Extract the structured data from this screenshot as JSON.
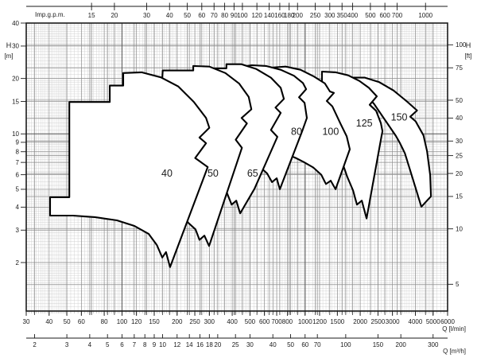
{
  "chart_data": {
    "type": "area",
    "subtype": "pump-family-coverage-envelopes-log-log",
    "title": "",
    "plot": {
      "x_range_lmin": [
        30,
        6000
      ],
      "y_range_m": [
        1.09,
        40
      ],
      "grid": "log-log fine grid",
      "legend_position": "labels inside envelopes"
    },
    "axis_top": {
      "label": "Imp.g.p.m.",
      "unit_to_lmin": 4.54609,
      "ticks": [
        15,
        20,
        30,
        40,
        50,
        60,
        70,
        80,
        90,
        100,
        120,
        140,
        160,
        180,
        200,
        250,
        300,
        350,
        400,
        500,
        600,
        700,
        1000
      ]
    },
    "axis_bottom_lmin": {
      "label": "Q [l/min]",
      "ticks": [
        30,
        40,
        50,
        60,
        80,
        100,
        120,
        150,
        200,
        250,
        300,
        400,
        500,
        600,
        700,
        800,
        1000,
        1200,
        1500,
        2000,
        2500,
        3000,
        4000,
        5000,
        6000
      ]
    },
    "axis_bottom_m3h": {
      "label": "Q [m³/h]",
      "unit_to_lmin": 16.6667,
      "ticks": [
        2,
        3,
        4,
        5,
        6,
        7,
        8,
        9,
        10,
        12,
        14,
        16,
        18,
        20,
        25,
        30,
        40,
        50,
        60,
        70,
        100,
        150,
        200,
        300
      ]
    },
    "axis_left": {
      "name": "H",
      "unit": "[m]",
      "ticks": [
        40,
        30,
        20,
        15,
        10,
        9,
        8,
        7,
        6,
        5,
        4,
        3,
        2
      ]
    },
    "axis_right": {
      "name": "H",
      "unit": "[ft]",
      "unit_to_m": 0.3048,
      "ticks": [
        100,
        75,
        50,
        40,
        30,
        25,
        20,
        15,
        10,
        5
      ]
    },
    "colors": {
      "background": "#ffffff",
      "grid_minor": "#cfcfcf",
      "grid_medium": "#8c8c8c",
      "grid_strong": "#555555",
      "axis": "#1a1a1a",
      "envelope_fill": "#ffffff",
      "envelope_stroke": "#000000",
      "text": "#1a1a1a"
    },
    "series": [
      {
        "name": "150",
        "label_Q": 3264,
        "label_H": 12.3,
        "outline": [
          [
            1781,
            20.2
          ],
          [
            2122,
            20.2
          ],
          [
            2541,
            19.1
          ],
          [
            3043,
            17.2
          ],
          [
            3570,
            15.1
          ],
          [
            4087,
            13.4
          ],
          [
            3751,
            12.4
          ],
          [
            4014,
            11.7
          ],
          [
            4434,
            9.81
          ],
          [
            4634,
            8.03
          ],
          [
            4819,
            5.97
          ],
          [
            4868,
            4.58
          ],
          [
            4316,
            4.02
          ],
          [
            4025,
            5.03
          ],
          [
            3759,
            6.29
          ],
          [
            3507,
            7.84
          ],
          [
            3297,
            8.91
          ],
          [
            3132,
            9.74
          ],
          [
            2376,
            14.6
          ],
          [
            1869,
            18.8
          ]
        ]
      },
      {
        "name": "125",
        "label_Q": 2105,
        "label_H": 11.4,
        "outline": [
          [
            1237,
            21.8
          ],
          [
            1467,
            21.6
          ],
          [
            1720,
            20.8
          ],
          [
            1979,
            19.4
          ],
          [
            2231,
            17.8
          ],
          [
            2465,
            16.0
          ],
          [
            2253,
            14.4
          ],
          [
            2442,
            13.35
          ],
          [
            2593,
            11.43
          ],
          [
            2645,
            10.34
          ],
          [
            2619,
            9.83
          ],
          [
            2166,
            3.47
          ],
          [
            2040,
            4.34
          ],
          [
            1920,
            4.13
          ],
          [
            1827,
            4.93
          ],
          [
            1697,
            5.86
          ],
          [
            1603,
            6.9
          ],
          [
            1524,
            7.66
          ],
          [
            1481,
            8.02
          ],
          [
            1329,
            11.9
          ],
          [
            1237,
            17.9
          ]
        ]
      },
      {
        "name": "100",
        "label_Q": 1379,
        "label_H": 10.3,
        "outline": [
          [
            651,
            22.9
          ],
          [
            782,
            23.2
          ],
          [
            944,
            22.3
          ],
          [
            1119,
            20.5
          ],
          [
            1283,
            18.8
          ],
          [
            1367,
            17.0
          ],
          [
            1437,
            16.7
          ],
          [
            1313,
            15.1
          ],
          [
            1409,
            14.1
          ],
          [
            1557,
            11.4
          ],
          [
            1687,
            9.7
          ],
          [
            1755,
            8.25
          ],
          [
            1467,
            5.0
          ],
          [
            1380,
            5.57
          ],
          [
            1300,
            5.34
          ],
          [
            1225,
            6.0
          ],
          [
            1108,
            6.57
          ],
          [
            983,
            7.03
          ],
          [
            890,
            7.4
          ],
          [
            821,
            7.65
          ],
          [
            714,
            10.9
          ],
          [
            659,
            17.9
          ]
        ]
      },
      {
        "name": "80",
        "label_Q": 898,
        "label_H": 10.3,
        "outline": [
          [
            416,
            22.9
          ],
          [
            511,
            23.6
          ],
          [
            611,
            23.4
          ],
          [
            736,
            22.3
          ],
          [
            869,
            20.7
          ],
          [
            973,
            18.9
          ],
          [
            1013,
            17.5
          ],
          [
            926,
            15.8
          ],
          [
            993,
            14.75
          ],
          [
            1023,
            12.2
          ],
          [
            964,
            10.34
          ],
          [
            728,
            5.0
          ],
          [
            700,
            5.74
          ],
          [
            659,
            5.47
          ],
          [
            621,
            6.09
          ],
          [
            566,
            6.63
          ],
          [
            506,
            7.04
          ],
          [
            455,
            7.33
          ],
          [
            432,
            9.0
          ],
          [
            420,
            14.6
          ]
        ]
      },
      {
        "name": "65",
        "label_Q": 517,
        "label_H": 6.1,
        "outline": [
          [
            262,
            22.7
          ],
          [
            372,
            22.7
          ],
          [
            372,
            23.9
          ],
          [
            449,
            23.9
          ],
          [
            542,
            22.5
          ],
          [
            651,
            20.2
          ],
          [
            736,
            17.8
          ],
          [
            766,
            15.5
          ],
          [
            689,
            13.9
          ],
          [
            736,
            13.0
          ],
          [
            651,
            10.5
          ],
          [
            706,
            9.64
          ],
          [
            529,
            5.03
          ],
          [
            442,
            3.7
          ],
          [
            421,
            4.34
          ],
          [
            397,
            4.13
          ],
          [
            374,
            4.79
          ],
          [
            341,
            5.34
          ],
          [
            311,
            5.84
          ],
          [
            287,
            6.26
          ],
          [
            276,
            9.84
          ],
          [
            270,
            16.2
          ]
        ]
      },
      {
        "name": "50",
        "label_Q": 314,
        "label_H": 6.1,
        "outline": [
          [
            167,
            22.1
          ],
          [
            245,
            22.1
          ],
          [
            245,
            23.4
          ],
          [
            300,
            23.2
          ],
          [
            367,
            21.4
          ],
          [
            436,
            18.8
          ],
          [
            492,
            15.9
          ],
          [
            509,
            13.6
          ],
          [
            450,
            12.2
          ],
          [
            481,
            11.4
          ],
          [
            418,
            9.3
          ],
          [
            452,
            8.4
          ],
          [
            299,
            2.46
          ],
          [
            282,
            2.8
          ],
          [
            265,
            2.66
          ],
          [
            252,
            3.03
          ],
          [
            230,
            3.29
          ],
          [
            208,
            3.75
          ],
          [
            187,
            4.07
          ],
          [
            170,
            4.3
          ],
          [
            164,
            7.3
          ],
          [
            164,
            16.2
          ]
        ]
      },
      {
        "name": "40",
        "label_Q": 176,
        "label_H": 6.1,
        "outline": [
          [
            40.5,
            3.6
          ],
          [
            40.5,
            4.53
          ],
          [
            51.6,
            4.53
          ],
          [
            51.6,
            14.9
          ],
          [
            85.8,
            14.9
          ],
          [
            85.8,
            18.3
          ],
          [
            101.6,
            18.3
          ],
          [
            101.6,
            21.4
          ],
          [
            128,
            21.6
          ],
          [
            163,
            20.3
          ],
          [
            203,
            18.1
          ],
          [
            247,
            14.9
          ],
          [
            288,
            12.2
          ],
          [
            300,
            10.8
          ],
          [
            265,
            9.55
          ],
          [
            288,
            8.9
          ],
          [
            251,
            7.4
          ],
          [
            294,
            6.6
          ],
          [
            183,
            1.89
          ],
          [
            174,
            2.28
          ],
          [
            166,
            2.13
          ],
          [
            155,
            2.49
          ],
          [
            140,
            2.86
          ],
          [
            117,
            3.16
          ],
          [
            94,
            3.39
          ],
          [
            71,
            3.53
          ],
          [
            54,
            3.6
          ]
        ]
      }
    ]
  }
}
